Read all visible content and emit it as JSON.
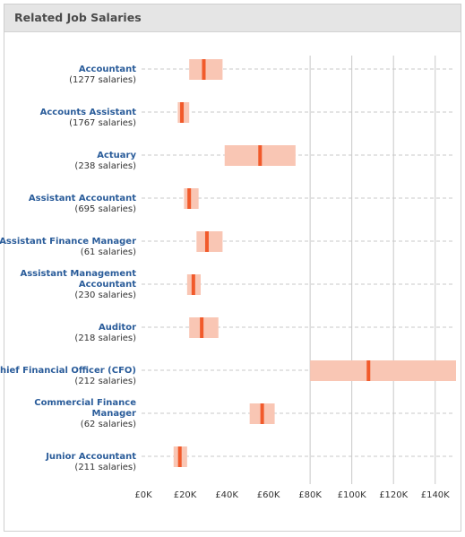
{
  "panel": {
    "title": "Related Job Salaries"
  },
  "chart_data": {
    "type": "range",
    "title": "Related Job Salaries",
    "xlim": [
      0,
      150000
    ],
    "x_ticks": [
      0,
      20000,
      40000,
      60000,
      80000,
      100000,
      120000,
      140000
    ],
    "x_tick_labels": [
      "£0K",
      "£20K",
      "£40K",
      "£60K",
      "£80K",
      "£100K",
      "£120K",
      "£140K"
    ],
    "grid": "vertical lines from £80K upward",
    "colors": {
      "range": "#f9c6b4",
      "median": "#f15a2b",
      "grid": "#c8c8c8",
      "label": "#2a5c9a"
    },
    "rows": [
      {
        "job": [
          "Accountant"
        ],
        "count": "(1277 salaries)",
        "low": 22000,
        "high": 38000,
        "median": 29000
      },
      {
        "job": [
          "Accounts Assistant"
        ],
        "count": "(1767 salaries)",
        "low": 16500,
        "high": 22000,
        "median": 18500
      },
      {
        "job": [
          "Actuary"
        ],
        "count": "(238 salaries)",
        "low": 39000,
        "high": 73000,
        "median": 56000
      },
      {
        "job": [
          "Assistant Accountant"
        ],
        "count": "(695 salaries)",
        "low": 19500,
        "high": 26500,
        "median": 22000
      },
      {
        "job": [
          "Assistant Finance Manager"
        ],
        "count": "(61 salaries)",
        "low": 25500,
        "high": 38000,
        "median": 30500
      },
      {
        "job": [
          "Assistant Management",
          "Accountant"
        ],
        "count": "(230 salaries)",
        "low": 21000,
        "high": 27500,
        "median": 24000
      },
      {
        "job": [
          "Auditor"
        ],
        "count": "(218 salaries)",
        "low": 22000,
        "high": 36000,
        "median": 28000
      },
      {
        "job": [
          "Chief Financial Officer (CFO)"
        ],
        "count": "(212 salaries)",
        "low": 80000,
        "high": 150000,
        "median": 108000
      },
      {
        "job": [
          "Commercial Finance",
          "Manager"
        ],
        "count": "(62 salaries)",
        "low": 51000,
        "high": 63000,
        "median": 57000
      },
      {
        "job": [
          "Junior Accountant"
        ],
        "count": "(211 salaries)",
        "low": 14500,
        "high": 21000,
        "median": 17500
      }
    ]
  }
}
